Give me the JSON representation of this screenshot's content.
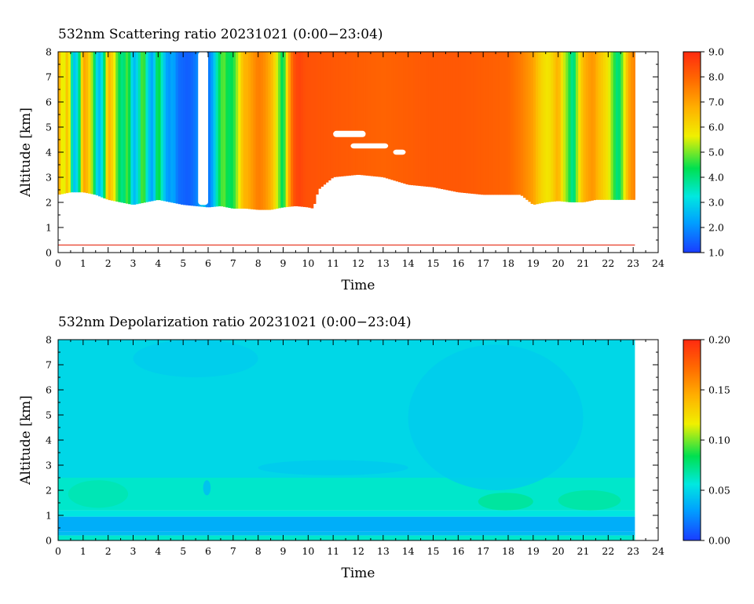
{
  "figure": {
    "panels": [
      {
        "id": "scattering",
        "title": "532nm Scattering ratio  20231021 (0:00−23:04)",
        "xlabel": "Time",
        "ylabel": "Altitude [km]",
        "colorbar_ticks": [
          "9.0",
          "8.0",
          "7.0",
          "6.0",
          "5.0",
          "4.0",
          "3.0",
          "2.0",
          "1.0"
        ]
      },
      {
        "id": "depolarization",
        "title": "532nm Depolarization ratio  20231021 (0:00−23:04)",
        "xlabel": "Time",
        "ylabel": "Altitude [km]",
        "colorbar_ticks": [
          "0.20",
          "0.15",
          "0.10",
          "0.05",
          "0.00"
        ]
      }
    ]
  },
  "chart_data": [
    {
      "type": "heatmap",
      "title": "532nm Scattering ratio  20231021 (0:00−23:04)",
      "xlabel": "Time",
      "ylabel": "Altitude [km]",
      "xlim": [
        0,
        24
      ],
      "ylim": [
        0,
        8
      ],
      "x_ticks": [
        0,
        1,
        2,
        3,
        4,
        5,
        6,
        7,
        8,
        9,
        10,
        11,
        12,
        13,
        14,
        15,
        16,
        17,
        18,
        19,
        20,
        21,
        22,
        23,
        24
      ],
      "y_ticks": [
        0,
        1,
        2,
        3,
        4,
        5,
        6,
        7,
        8
      ],
      "data_end_time": 23.07,
      "colorbar": {
        "min": 1.0,
        "max": 9.0,
        "ticks": [
          1.0,
          2.0,
          3.0,
          4.0,
          5.0,
          6.0,
          7.0,
          8.0,
          9.0
        ],
        "colormap": "rainbow (blue-cyan-green-yellow-orange-red)"
      },
      "reference_line": {
        "altitude_km": 0.3,
        "color": "#e8402a"
      },
      "column_values": {
        "time_h": [
          0,
          0.2,
          0.4,
          0.6,
          0.8,
          1.0,
          1.2,
          1.4,
          1.6,
          1.8,
          2.0,
          2.2,
          2.4,
          2.6,
          2.8,
          3.0,
          3.2,
          3.4,
          3.6,
          3.8,
          4.0,
          4.2,
          4.4,
          4.6,
          4.8,
          5.0,
          5.2,
          5.4,
          5.6,
          5.8,
          6.0,
          6.2,
          6.4,
          6.6,
          6.8,
          7.0,
          7.2,
          7.4,
          7.6,
          7.8,
          8.0,
          8.2,
          8.4,
          8.6,
          8.8,
          9.0,
          9.2,
          9.4,
          9.6,
          9.8,
          10.0,
          11,
          12,
          13,
          14,
          15,
          16,
          17,
          18,
          18.5,
          19.0,
          19.2,
          19.4,
          19.6,
          19.8,
          20.0,
          20.2,
          20.4,
          20.6,
          20.8,
          21.0,
          21.2,
          21.4,
          21.6,
          21.8,
          22.0,
          22.2,
          22.4,
          22.6,
          22.8,
          23.0
        ],
        "ratio": [
          7.2,
          5.2,
          6.8,
          2.6,
          3.2,
          7.0,
          6.5,
          4.8,
          2.4,
          3.4,
          6.8,
          6.0,
          4.5,
          3.8,
          5.0,
          2.4,
          3.2,
          5.2,
          2.8,
          2.2,
          4.8,
          3.0,
          2.0,
          2.4,
          1.6,
          1.5,
          1.4,
          1.6,
          2.0,
          3.0,
          1.6,
          2.4,
          4.0,
          5.0,
          4.2,
          4.4,
          5.4,
          6.6,
          6.8,
          7.2,
          7.6,
          7.4,
          7.0,
          6.4,
          5.2,
          4.0,
          6.6,
          8.2,
          8.6,
          8.4,
          8.3,
          8.2,
          8.1,
          8.0,
          8.1,
          8.2,
          8.2,
          8.1,
          8.0,
          7.6,
          7.0,
          6.4,
          6.0,
          5.8,
          6.2,
          6.8,
          5.6,
          4.8,
          3.6,
          5.6,
          6.6,
          7.0,
          7.2,
          6.6,
          6.2,
          5.8,
          4.8,
          3.8,
          5.2,
          6.8,
          7.4
        ]
      },
      "cloud_base_km": {
        "time_h": [
          0,
          0.5,
          1.0,
          1.5,
          2.0,
          2.5,
          3.0,
          3.5,
          4.0,
          4.5,
          5.0,
          5.5,
          6.0,
          6.5,
          7.0,
          7.5,
          8.0,
          8.5,
          9.0,
          9.5,
          10.0,
          10.2,
          10.4,
          11,
          12,
          13,
          14,
          15,
          16,
          17,
          18,
          18.5,
          19.0,
          19.5,
          20.0,
          20.5,
          21.0,
          21.5,
          22.0,
          22.5,
          23.0
        ],
        "altitude": [
          2.3,
          2.4,
          2.4,
          2.3,
          2.1,
          2.0,
          1.9,
          2.0,
          2.1,
          2.0,
          1.9,
          1.85,
          1.8,
          1.85,
          1.75,
          1.75,
          1.7,
          1.7,
          1.8,
          1.85,
          1.8,
          1.75,
          2.5,
          3.0,
          3.1,
          3.0,
          2.7,
          2.6,
          2.4,
          2.3,
          2.3,
          2.3,
          1.9,
          2.0,
          2.05,
          2.0,
          2.0,
          2.1,
          2.1,
          2.1,
          2.1
        ]
      },
      "gaps": [
        {
          "time_range": [
            5.6,
            6.0
          ],
          "altitude_range": [
            1.9,
            8.0
          ]
        },
        {
          "time_range": [
            11.0,
            12.3
          ],
          "altitude_range": [
            4.6,
            4.85
          ]
        },
        {
          "time_range": [
            11.7,
            13.2
          ],
          "altitude_range": [
            4.15,
            4.35
          ]
        },
        {
          "time_range": [
            13.4,
            13.9
          ],
          "altitude_range": [
            3.9,
            4.1
          ]
        }
      ]
    },
    {
      "type": "heatmap",
      "title": "532nm Depolarization ratio  20231021 (0:00−23:04)",
      "xlabel": "Time",
      "ylabel": "Altitude [km]",
      "xlim": [
        0,
        24
      ],
      "ylim": [
        0,
        8
      ],
      "x_ticks": [
        0,
        1,
        2,
        3,
        4,
        5,
        6,
        7,
        8,
        9,
        10,
        11,
        12,
        13,
        14,
        15,
        16,
        17,
        18,
        19,
        20,
        21,
        22,
        23,
        24
      ],
      "y_ticks": [
        0,
        1,
        2,
        3,
        4,
        5,
        6,
        7,
        8
      ],
      "data_end_time": 23.07,
      "colorbar": {
        "min": 0.0,
        "max": 0.2,
        "ticks": [
          0.0,
          0.05,
          0.1,
          0.15,
          0.2
        ],
        "colormap": "rainbow (blue-cyan-green-yellow-orange-red)"
      },
      "layers": [
        {
          "altitude_range": [
            0.0,
            0.2
          ],
          "value": 0.06
        },
        {
          "altitude_range": [
            0.2,
            0.35
          ],
          "value": 0.04
        },
        {
          "altitude_range": [
            0.35,
            0.95
          ],
          "value": 0.035
        },
        {
          "altitude_range": [
            0.95,
            1.2
          ],
          "value": 0.055
        },
        {
          "altitude_range": [
            1.2,
            2.5
          ],
          "value": 0.06
        },
        {
          "altitude_range": [
            2.5,
            8.0
          ],
          "value": 0.05
        }
      ],
      "features": [
        {
          "time_range": [
            0.4,
            2.8
          ],
          "altitude_range": [
            1.3,
            2.4
          ],
          "value": 0.065
        },
        {
          "time_range": [
            16.8,
            19.0
          ],
          "altitude_range": [
            1.2,
            1.9
          ],
          "value": 0.07
        },
        {
          "time_range": [
            20.0,
            22.5
          ],
          "altitude_range": [
            1.2,
            2.0
          ],
          "value": 0.068
        },
        {
          "time_range": [
            5.8,
            6.1
          ],
          "altitude_range": [
            1.8,
            2.4
          ],
          "value": 0.04
        },
        {
          "time_range": [
            8.0,
            14.0
          ],
          "altitude_range": [
            2.6,
            3.2
          ],
          "value": 0.045
        },
        {
          "time_range": [
            14.0,
            21.0
          ],
          "altitude_range": [
            2.0,
            7.8
          ],
          "value": 0.046
        },
        {
          "time_range": [
            3.0,
            8.0
          ],
          "altitude_range": [
            6.5,
            8.0
          ],
          "value": 0.046
        }
      ]
    }
  ]
}
